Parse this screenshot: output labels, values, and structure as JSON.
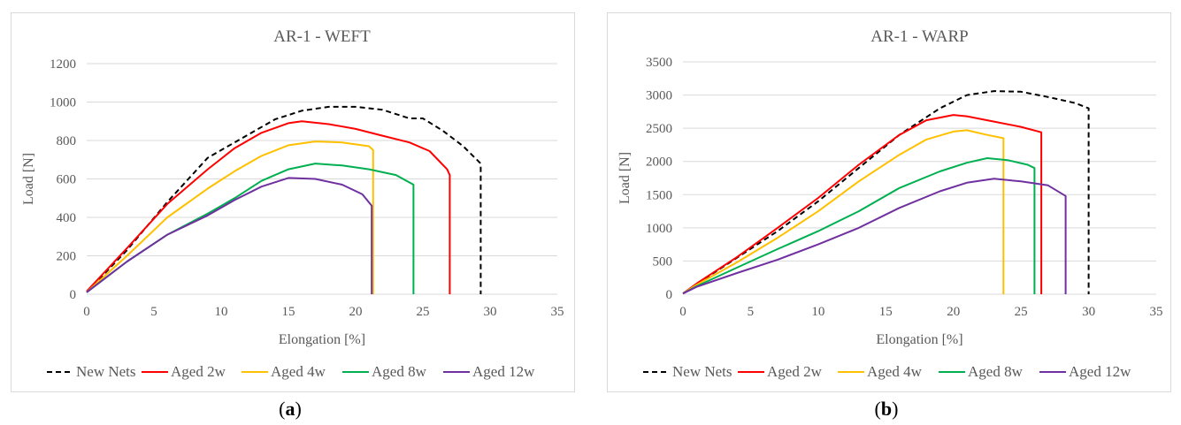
{
  "captions": {
    "a": {
      "open": "(",
      "letter": "a",
      "close": ")"
    },
    "b": {
      "open": "(",
      "letter": "b",
      "close": ")"
    }
  },
  "chart_data": [
    {
      "type": "line",
      "title": "AR-1 - WEFT",
      "xlabel": "Elongation [%]",
      "ylabel": "Load [N]",
      "xlim": [
        0,
        35
      ],
      "ylim": [
        0,
        1200
      ],
      "xticks": [
        0,
        5,
        10,
        15,
        20,
        25,
        30,
        35
      ],
      "yticks": [
        0,
        200,
        400,
        600,
        800,
        1000,
        1200
      ],
      "grid": true,
      "legend": "bottom",
      "series": [
        {
          "name": "New Nets",
          "color": "#000000",
          "dash": true,
          "points": [
            [
              0,
              10
            ],
            [
              3,
              230
            ],
            [
              6,
              480
            ],
            [
              9,
              710
            ],
            [
              12,
              830
            ],
            [
              14,
              910
            ],
            [
              16,
              955
            ],
            [
              18,
              975
            ],
            [
              20,
              975
            ],
            [
              22,
              960
            ],
            [
              24,
              915
            ],
            [
              25,
              915
            ],
            [
              26.5,
              850
            ],
            [
              28,
              770
            ],
            [
              29.3,
              680
            ],
            [
              29.3,
              0
            ]
          ]
        },
        {
          "name": "Aged 2w",
          "color": "#ff0000",
          "points": [
            [
              0,
              15
            ],
            [
              3,
              240
            ],
            [
              6,
              470
            ],
            [
              9,
              650
            ],
            [
              11,
              760
            ],
            [
              13,
              840
            ],
            [
              15,
              890
            ],
            [
              16,
              900
            ],
            [
              18,
              885
            ],
            [
              20,
              860
            ],
            [
              22,
              825
            ],
            [
              24,
              790
            ],
            [
              25.5,
              745
            ],
            [
              26.8,
              650
            ],
            [
              27,
              620
            ],
            [
              27,
              0
            ]
          ]
        },
        {
          "name": "Aged 4w",
          "color": "#ffc000",
          "points": [
            [
              0,
              10
            ],
            [
              3,
              200
            ],
            [
              6,
              400
            ],
            [
              9,
              550
            ],
            [
              11,
              640
            ],
            [
              13,
              720
            ],
            [
              15,
              775
            ],
            [
              17,
              795
            ],
            [
              19,
              790
            ],
            [
              21,
              770
            ],
            [
              21.3,
              750
            ],
            [
              21.3,
              0
            ]
          ]
        },
        {
          "name": "Aged 8w",
          "color": "#00b050",
          "points": [
            [
              0,
              10
            ],
            [
              3,
              170
            ],
            [
              6,
              310
            ],
            [
              9,
              420
            ],
            [
              11,
              500
            ],
            [
              13,
              590
            ],
            [
              15,
              650
            ],
            [
              17,
              680
            ],
            [
              19,
              670
            ],
            [
              21,
              650
            ],
            [
              23,
              620
            ],
            [
              24.3,
              570
            ],
            [
              24.3,
              0
            ]
          ]
        },
        {
          "name": "Aged 12w",
          "color": "#7030a0",
          "points": [
            [
              0,
              10
            ],
            [
              3,
              170
            ],
            [
              6,
              310
            ],
            [
              9,
              410
            ],
            [
              11,
              490
            ],
            [
              13,
              560
            ],
            [
              15,
              605
            ],
            [
              17,
              600
            ],
            [
              19,
              570
            ],
            [
              20.5,
              520
            ],
            [
              21.2,
              460
            ],
            [
              21.2,
              0
            ]
          ]
        }
      ]
    },
    {
      "type": "line",
      "title": "AR-1 - WARP",
      "xlabel": "Elongation [%]",
      "ylabel": "Load [N]",
      "xlim": [
        0,
        35
      ],
      "ylim": [
        0,
        3500
      ],
      "xticks": [
        0,
        5,
        10,
        15,
        20,
        25,
        30,
        35
      ],
      "yticks": [
        0,
        500,
        1000,
        1500,
        2000,
        2500,
        3000,
        3500
      ],
      "grid": true,
      "legend": "bottom",
      "series": [
        {
          "name": "New Nets",
          "color": "#000000",
          "dash": true,
          "points": [
            [
              0,
              10
            ],
            [
              1,
              150
            ],
            [
              4,
              550
            ],
            [
              7,
              950
            ],
            [
              10,
              1400
            ],
            [
              13,
              1900
            ],
            [
              16,
              2400
            ],
            [
              19,
              2800
            ],
            [
              21,
              3000
            ],
            [
              23,
              3060
            ],
            [
              25,
              3050
            ],
            [
              27,
              2970
            ],
            [
              29,
              2880
            ],
            [
              30,
              2800
            ],
            [
              30,
              0
            ]
          ]
        },
        {
          "name": "Aged 2w",
          "color": "#ff0000",
          "points": [
            [
              0,
              10
            ],
            [
              1,
              160
            ],
            [
              4,
              560
            ],
            [
              7,
              1000
            ],
            [
              10,
              1450
            ],
            [
              13,
              1950
            ],
            [
              16,
              2400
            ],
            [
              18,
              2620
            ],
            [
              20,
              2700
            ],
            [
              21,
              2680
            ],
            [
              23,
              2600
            ],
            [
              25,
              2520
            ],
            [
              26.5,
              2440
            ],
            [
              26.5,
              0
            ]
          ]
        },
        {
          "name": "Aged 4w",
          "color": "#ffc000",
          "points": [
            [
              0,
              10
            ],
            [
              1,
              140
            ],
            [
              4,
              480
            ],
            [
              7,
              850
            ],
            [
              10,
              1250
            ],
            [
              13,
              1700
            ],
            [
              16,
              2100
            ],
            [
              18,
              2330
            ],
            [
              20,
              2450
            ],
            [
              21,
              2470
            ],
            [
              22.5,
              2400
            ],
            [
              23.7,
              2350
            ],
            [
              23.7,
              0
            ]
          ]
        },
        {
          "name": "Aged 8w",
          "color": "#00b050",
          "points": [
            [
              0,
              10
            ],
            [
              1,
              120
            ],
            [
              4,
              400
            ],
            [
              7,
              680
            ],
            [
              10,
              950
            ],
            [
              13,
              1250
            ],
            [
              16,
              1600
            ],
            [
              19,
              1850
            ],
            [
              21,
              1980
            ],
            [
              22.5,
              2050
            ],
            [
              24,
              2020
            ],
            [
              25.5,
              1950
            ],
            [
              26,
              1900
            ],
            [
              26,
              0
            ]
          ]
        },
        {
          "name": "Aged 12w",
          "color": "#7030a0",
          "points": [
            [
              0,
              10
            ],
            [
              1,
              110
            ],
            [
              4,
              320
            ],
            [
              7,
              520
            ],
            [
              10,
              750
            ],
            [
              13,
              1000
            ],
            [
              16,
              1300
            ],
            [
              19,
              1550
            ],
            [
              21,
              1680
            ],
            [
              23,
              1740
            ],
            [
              25,
              1700
            ],
            [
              27,
              1640
            ],
            [
              28.3,
              1480
            ],
            [
              28.3,
              0
            ]
          ]
        }
      ]
    }
  ]
}
